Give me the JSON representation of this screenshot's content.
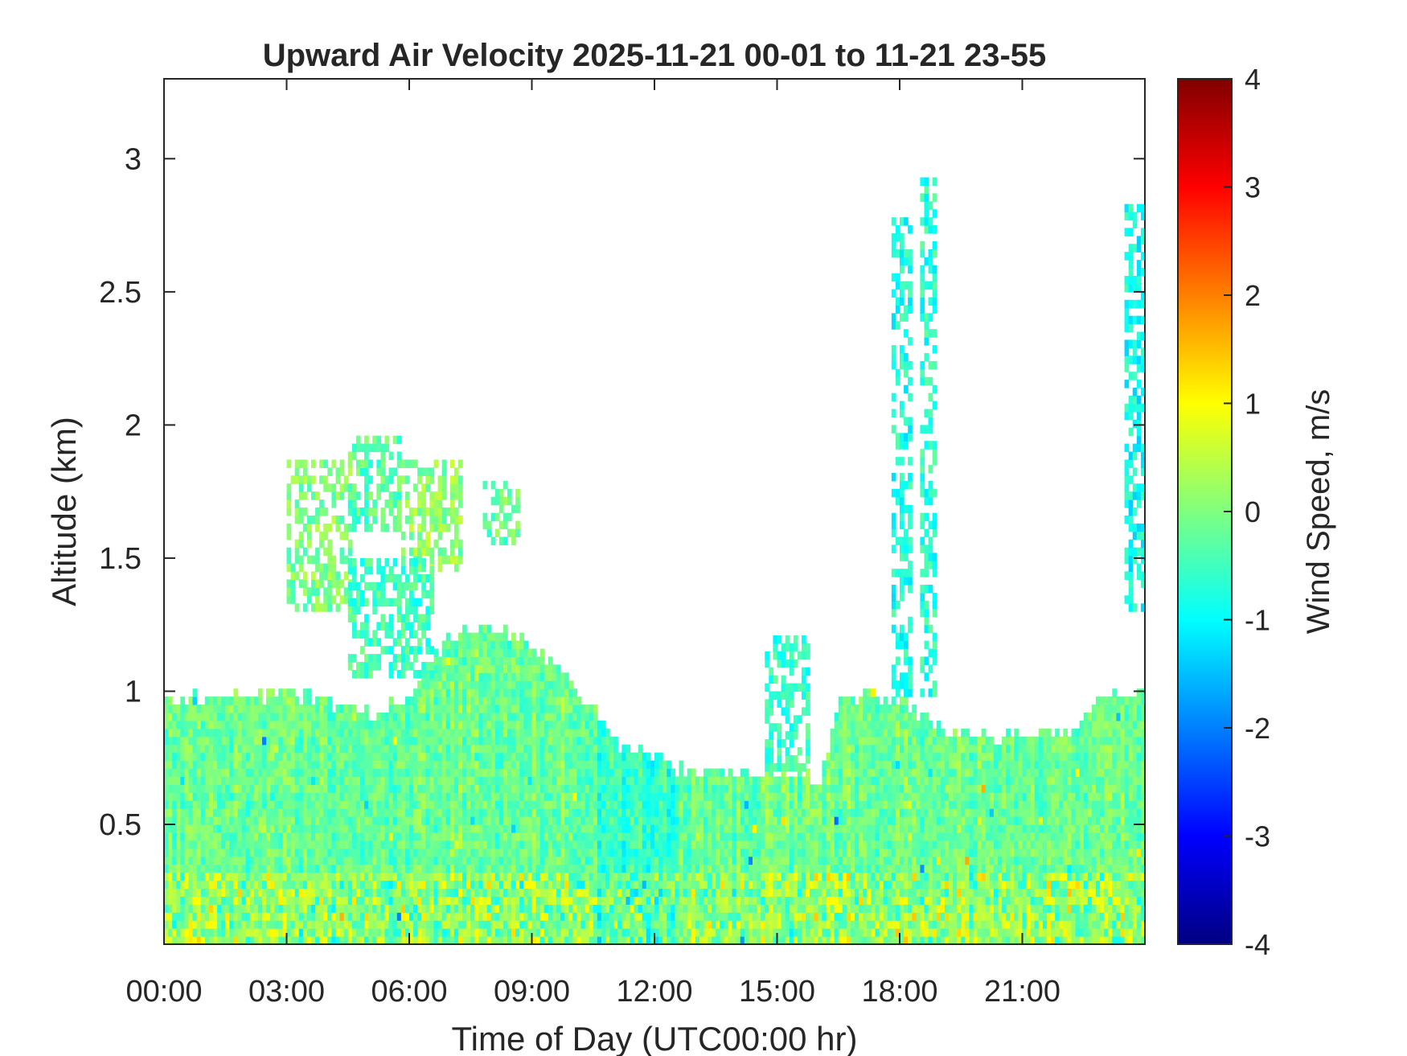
{
  "chart_data": {
    "type": "heatmap",
    "title": "Upward Air Velocity 2025-11-21 00-01 to 11-21 23-55",
    "xlabel": "Time of Day (UTC00:00 hr)",
    "ylabel": "Altitude (km)",
    "colorbar_label": "Wind Speed, m/s",
    "x_unit": "hours UTC",
    "x_range": [
      0,
      24
    ],
    "ylim": [
      0.05,
      3.3
    ],
    "clim": [
      -4,
      4
    ],
    "colormap": "jet",
    "x_ticks": [
      0,
      3,
      6,
      9,
      12,
      15,
      18,
      21
    ],
    "x_tick_labels": [
      "00:00",
      "03:00",
      "06:00",
      "09:00",
      "12:00",
      "15:00",
      "18:00",
      "21:00"
    ],
    "y_ticks": [
      0.5,
      1,
      1.5,
      2,
      2.5,
      3
    ],
    "y_tick_labels": [
      "0.5",
      "1",
      "1.5",
      "2",
      "2.5",
      "3"
    ],
    "colorbar_ticks": [
      4,
      3,
      2,
      1,
      0,
      -1,
      -2,
      -3,
      -4
    ],
    "colorbar_tick_labels": [
      "4",
      "3",
      "2",
      "1",
      "0",
      "-1",
      "-2",
      "-3",
      "-4"
    ],
    "grid": false,
    "boundary_layer_top_km": [
      [
        0.0,
        0.95
      ],
      [
        1.0,
        0.98
      ],
      [
        2.0,
        0.97
      ],
      [
        3.0,
        0.97
      ],
      [
        4.0,
        0.95
      ],
      [
        5.0,
        0.9
      ],
      [
        6.0,
        0.97
      ],
      [
        7.0,
        1.2
      ],
      [
        8.0,
        1.22
      ],
      [
        9.0,
        1.17
      ],
      [
        10.0,
        1.0
      ],
      [
        11.0,
        0.8
      ],
      [
        12.0,
        0.72
      ],
      [
        13.0,
        0.67
      ],
      [
        14.0,
        0.68
      ],
      [
        15.0,
        0.68
      ],
      [
        16.0,
        0.65
      ],
      [
        16.5,
        0.95
      ],
      [
        17.0,
        0.97
      ],
      [
        18.0,
        0.95
      ],
      [
        19.0,
        0.85
      ],
      [
        20.0,
        0.83
      ],
      [
        21.0,
        0.82
      ],
      [
        22.0,
        0.82
      ],
      [
        23.0,
        0.98
      ],
      [
        24.0,
        0.98
      ]
    ],
    "elevated_features": [
      {
        "t": [
          3.0,
          4.5
        ],
        "alt": [
          1.3,
          1.85
        ],
        "value": 0.0
      },
      {
        "t": [
          4.5,
          5.7
        ],
        "alt": [
          1.6,
          1.95
        ],
        "value": -0.3
      },
      {
        "t": [
          5.8,
          7.2
        ],
        "alt": [
          1.45,
          1.85
        ],
        "value": 0.1
      },
      {
        "t": [
          7.8,
          8.6
        ],
        "alt": [
          1.55,
          1.78
        ],
        "value": -0.2
      },
      {
        "t": [
          4.5,
          6.5
        ],
        "alt": [
          1.05,
          1.5
        ],
        "value": -0.5
      },
      {
        "t": [
          14.7,
          15.7
        ],
        "alt": [
          0.7,
          1.2
        ],
        "value": -0.6
      },
      {
        "t": [
          17.8,
          18.3
        ],
        "alt": [
          0.95,
          2.75
        ],
        "value": -0.8
      },
      {
        "t": [
          18.5,
          18.9
        ],
        "alt": [
          0.95,
          2.9
        ],
        "value": -0.7
      },
      {
        "t": [
          23.5,
          24.0
        ],
        "alt": [
          1.3,
          2.8
        ],
        "value": -0.9
      }
    ]
  }
}
